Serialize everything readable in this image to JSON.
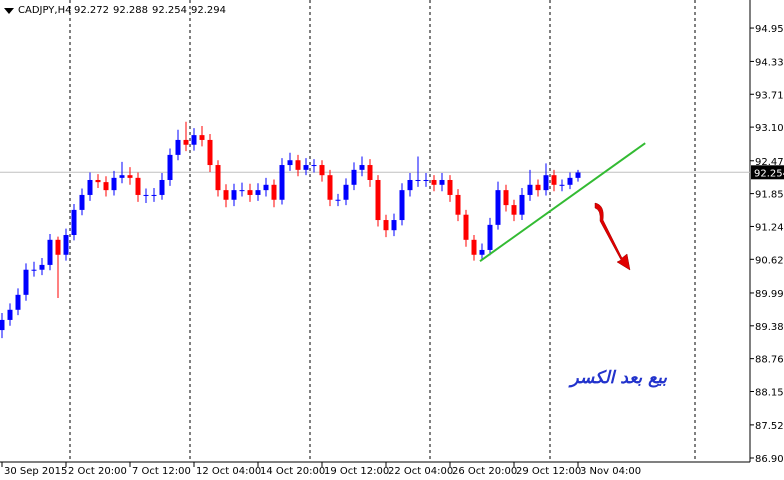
{
  "chart_data": {
    "type": "candlestick",
    "symbol": "CADJPY,H4",
    "header_values": [
      92.272,
      92.288,
      92.254,
      92.294
    ],
    "annotation": "بيع بعد الكسر",
    "up_color": "#0000ff",
    "down_color": "#ff0000",
    "current_price": 92.254,
    "trendline": {
      "x": [
        59.75,
        80.4
      ],
      "y": [
        90.59,
        92.8
      ],
      "color": "#33bb33"
    },
    "xlim": [
      -0.25,
      93.5
    ],
    "ylim": [
      86.83,
      95.48
    ],
    "xticks": [
      {
        "value": 0,
        "label": "30 Sep 2015"
      },
      {
        "value": 8,
        "label": "2 Oct 20:00"
      },
      {
        "value": 16,
        "label": "7 Oct 12:00"
      },
      {
        "value": 24,
        "label": "12 Oct 04:00"
      },
      {
        "value": 32,
        "label": "14 Oct 20:00"
      },
      {
        "value": 40,
        "label": "19 Oct 12:00"
      },
      {
        "value": 48,
        "label": "22 Oct 04:00"
      },
      {
        "value": 56,
        "label": "26 Oct 20:00"
      },
      {
        "value": 64,
        "label": "29 Oct 12:00"
      },
      {
        "value": 72,
        "label": "3 Nov 04:00"
      }
    ],
    "yticks": [
      94.955,
      {
        "value": 94.33,
        "label": "94.330"
      },
      93.715,
      {
        "value": 93.1,
        "label": "93.100"
      },
      {
        "value": 92.47,
        "label": "92.470"
      },
      91.855,
      {
        "value": 91.24,
        "label": "91.240"
      },
      90.625,
      89.995,
      {
        "value": 89.38,
        "label": "89.380"
      },
      88.765,
      {
        "value": 88.15,
        "label": "88.150"
      },
      87.525,
      86.905
    ],
    "open": [
      89.3,
      89.49,
      89.68,
      89.96,
      90.43,
      90.43,
      90.52,
      90.99,
      90.71,
      91.08,
      91.55,
      91.83,
      92.11,
      92.07,
      91.92,
      92.15,
      92.2,
      92.15,
      91.83,
      91.83,
      91.83,
      92.11,
      92.58,
      92.86,
      92.77,
      92.95,
      92.86,
      92.39,
      91.92,
      91.74,
      91.92,
      91.92,
      91.83,
      91.92,
      92.02,
      91.74,
      92.39,
      92.48,
      92.3,
      92.39,
      92.39,
      92.2,
      91.74,
      91.74,
      92.02,
      92.3,
      92.39,
      92.11,
      91.36,
      91.17,
      91.36,
      91.92,
      92.11,
      92.11,
      92.11,
      92.02,
      92.11,
      91.83,
      91.46,
      90.99,
      90.71,
      90.8,
      91.27,
      91.92,
      91.64,
      91.46,
      91.83,
      92.02,
      91.92,
      92.2,
      92.02,
      92.02,
      92.15
    ],
    "high": [
      89.62,
      89.8,
      90.08,
      90.55,
      90.58,
      90.65,
      91.1,
      91.05,
      91.2,
      91.66,
      91.95,
      92.25,
      92.22,
      92.18,
      92.28,
      92.45,
      92.35,
      92.25,
      91.95,
      91.96,
      92.24,
      92.7,
      93.05,
      93.2,
      93.08,
      93.12,
      92.97,
      92.48,
      92.03,
      92.04,
      92.06,
      92.04,
      92.05,
      92.15,
      92.12,
      92.52,
      92.62,
      92.58,
      92.52,
      92.5,
      92.48,
      92.3,
      91.85,
      92.14,
      92.44,
      92.55,
      92.5,
      92.2,
      91.46,
      91.48,
      92.05,
      92.24,
      92.55,
      92.24,
      92.2,
      92.24,
      92.2,
      91.94,
      91.55,
      91.08,
      90.92,
      91.4,
      92.08,
      92.02,
      91.74,
      91.96,
      92.3,
      92.12,
      92.42,
      92.3,
      92.12,
      92.25,
      92.3
    ],
    "low": [
      89.15,
      89.38,
      89.58,
      89.85,
      90.3,
      90.33,
      90.42,
      89.9,
      90.6,
      90.98,
      91.45,
      91.72,
      91.96,
      91.8,
      91.82,
      92.05,
      92.02,
      91.7,
      91.68,
      91.7,
      91.74,
      92.0,
      92.48,
      92.65,
      92.66,
      92.74,
      92.26,
      91.8,
      91.6,
      91.62,
      91.8,
      91.7,
      91.72,
      91.8,
      91.6,
      91.65,
      92.28,
      92.18,
      92.2,
      92.25,
      92.08,
      91.62,
      91.62,
      91.64,
      91.92,
      92.18,
      91.98,
      91.24,
      91.04,
      91.06,
      91.26,
      91.8,
      91.98,
      91.98,
      91.9,
      91.9,
      91.7,
      91.34,
      90.86,
      90.6,
      90.62,
      90.7,
      91.18,
      91.52,
      91.34,
      91.36,
      91.72,
      91.8,
      91.82,
      91.9,
      91.9,
      91.94,
      92.08
    ],
    "close": [
      89.49,
      89.68,
      89.96,
      90.43,
      90.43,
      90.52,
      90.99,
      90.71,
      91.08,
      91.55,
      91.83,
      92.11,
      92.07,
      91.92,
      92.15,
      92.2,
      92.15,
      91.83,
      91.83,
      91.83,
      92.11,
      92.58,
      92.86,
      92.77,
      92.95,
      92.86,
      92.39,
      91.92,
      91.74,
      91.92,
      91.92,
      91.83,
      91.92,
      92.02,
      91.74,
      92.39,
      92.48,
      92.3,
      92.39,
      92.39,
      92.2,
      91.74,
      91.74,
      92.02,
      92.3,
      92.39,
      92.11,
      91.36,
      91.17,
      91.36,
      91.92,
      92.11,
      92.11,
      92.11,
      92.02,
      92.11,
      91.83,
      91.46,
      90.99,
      90.71,
      90.8,
      91.27,
      91.92,
      91.64,
      91.46,
      91.83,
      92.02,
      91.92,
      92.2,
      92.02,
      92.02,
      92.15,
      92.25
    ]
  }
}
